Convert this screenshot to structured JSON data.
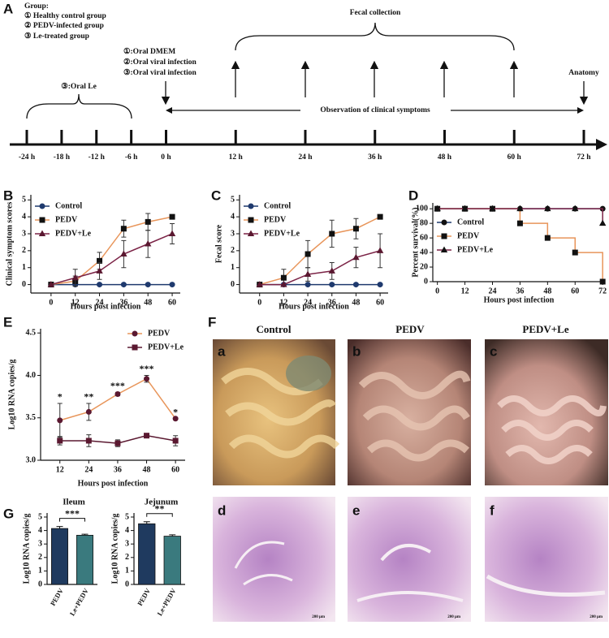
{
  "panel_a": {
    "label": "A",
    "group_title": "Group:",
    "groups": [
      "① Healthy control group",
      "② PEDV-infected group",
      "③ Le-treated group"
    ],
    "pretreatment": "③:Oral Le",
    "infection": [
      "①:Oral DMEM",
      "②:Oral viral infection",
      "③:Oral viral infection"
    ],
    "fecal": "Fecal collection",
    "observation": "Observation of clinical symptoms",
    "anatomy": "Anatomy",
    "timeline": [
      {
        "value": -24,
        "label": "-24 h"
      },
      {
        "value": -18,
        "label": "-18 h"
      },
      {
        "value": -12,
        "label": "-12 h"
      },
      {
        "value": -6,
        "label": "-6 h"
      },
      {
        "value": 0,
        "label": "0 h"
      },
      {
        "value": 12,
        "label": "12 h"
      },
      {
        "value": 24,
        "label": "24 h"
      },
      {
        "value": 36,
        "label": "36 h"
      },
      {
        "value": 48,
        "label": "48 h"
      },
      {
        "value": 60,
        "label": "60 h"
      },
      {
        "value": 72,
        "label": "72 h"
      }
    ]
  },
  "chart_data": [
    {
      "panel": "B",
      "type": "line",
      "ylabel": "Clinical symptom scores",
      "xlabel": "Hours post infection",
      "x": [
        0,
        12,
        24,
        36,
        48,
        60
      ],
      "xlim": [
        -10,
        64
      ],
      "xticks": [
        0,
        12,
        24,
        36,
        48,
        60
      ],
      "ylim": [
        -0.5,
        5.3
      ],
      "yticks": [
        0,
        1,
        2,
        3,
        4,
        5
      ],
      "legend": "upper left",
      "series": [
        {
          "name": "Control",
          "color": "#1f3a6e",
          "marker_color": "#1f3a6e",
          "marker": "circle",
          "values": [
            0,
            0,
            0,
            0,
            0,
            0
          ]
        },
        {
          "name": "PEDV",
          "color": "#e8955a",
          "marker_color": "#111111",
          "marker": "square",
          "values": [
            0,
            0.2,
            1.4,
            3.3,
            3.7,
            4.0
          ],
          "errors": [
            0,
            0.3,
            0.5,
            0.5,
            0.5,
            0
          ]
        },
        {
          "name": "PEDV+Le",
          "color": "#7b2346",
          "marker_color": "#5a1830",
          "marker": "triangle",
          "values": [
            0,
            0.4,
            0.8,
            1.8,
            2.4,
            3.0
          ],
          "errors": [
            0,
            0.5,
            0.5,
            0.8,
            0.8,
            0.6
          ]
        }
      ]
    },
    {
      "panel": "C",
      "type": "line",
      "ylabel": "Fecal score",
      "xlabel": "Hours post infection",
      "x": [
        0,
        12,
        24,
        36,
        48,
        60
      ],
      "xlim": [
        -10,
        64
      ],
      "xticks": [
        0,
        12,
        24,
        36,
        48,
        60
      ],
      "ylim": [
        -0.5,
        5.3
      ],
      "yticks": [
        0,
        1,
        2,
        3,
        4,
        5
      ],
      "legend": "upper left",
      "series": [
        {
          "name": "Control",
          "color": "#1f3a6e",
          "marker_color": "#1f3a6e",
          "marker": "circle",
          "values": [
            0,
            0,
            0,
            0,
            0,
            0
          ]
        },
        {
          "name": "PEDV",
          "color": "#e8955a",
          "marker_color": "#111111",
          "marker": "square",
          "values": [
            0,
            0.4,
            1.8,
            3.0,
            3.3,
            4.0
          ],
          "errors": [
            0,
            0.5,
            0.8,
            0.8,
            0.6,
            0
          ]
        },
        {
          "name": "PEDV+Le",
          "color": "#7b2346",
          "marker_color": "#5a1830",
          "marker": "triangle",
          "values": [
            0,
            0,
            0.6,
            0.8,
            1.6,
            2.0
          ],
          "errors": [
            0,
            0,
            0.4,
            0.5,
            0.6,
            1.0
          ]
        }
      ]
    },
    {
      "panel": "D",
      "type": "step",
      "ylabel": "Percent survival(%)",
      "xlabel": "Hours post infection",
      "x": [
        0,
        12,
        24,
        36,
        48,
        60,
        72
      ],
      "xlim": [
        -2,
        73
      ],
      "xticks": [
        0,
        12,
        24,
        36,
        48,
        60,
        72
      ],
      "ylim": [
        0,
        108
      ],
      "yticks": [
        0,
        20,
        40,
        60,
        80,
        100
      ],
      "legend": "upper left",
      "series": [
        {
          "name": "Control",
          "color": "#1f3a6e",
          "marker_color": "#111111",
          "marker": "circle",
          "values": [
            100,
            100,
            100,
            100,
            100,
            100,
            100
          ]
        },
        {
          "name": "PEDV",
          "color": "#e8955a",
          "marker_color": "#111111",
          "marker": "square",
          "values": [
            100,
            100,
            100,
            80,
            60,
            40,
            0
          ]
        },
        {
          "name": "PEDV+Le",
          "color": "#7b2346",
          "marker_color": "#111111",
          "marker": "triangle",
          "values": [
            100,
            100,
            100,
            100,
            100,
            100,
            80
          ]
        }
      ]
    },
    {
      "panel": "E",
      "type": "line",
      "ylabel": "Log10 RNA copies/g",
      "xlabel": "Hours post infection",
      "x": [
        12,
        24,
        36,
        48,
        60
      ],
      "xlim": [
        4,
        64
      ],
      "xticks": [
        12,
        24,
        36,
        48,
        60
      ],
      "ylim": [
        3.0,
        4.55
      ],
      "yticks": [
        {
          "value": 3.0,
          "label": "3.0"
        },
        {
          "value": 3.5,
          "label": "3.5"
        },
        {
          "value": 4.0,
          "label": "4.0"
        },
        {
          "value": 4.5,
          "label": "4.5"
        }
      ],
      "legend": "upper right",
      "annotations": [
        "*",
        "**",
        "***",
        "***",
        "*"
      ],
      "series": [
        {
          "name": "PEDV",
          "color": "#e8955a",
          "marker_color": "#5a1830",
          "marker": "circle",
          "values": [
            3.47,
            3.57,
            3.78,
            3.96,
            3.49
          ],
          "errors": [
            0.2,
            0.1,
            0.02,
            0.04,
            0
          ]
        },
        {
          "name": "PEDV+Le",
          "color": "#5a1830",
          "marker_color": "#5a1830",
          "marker": "square",
          "values": [
            3.23,
            3.23,
            3.2,
            3.29,
            3.23
          ],
          "errors": [
            0.05,
            0.07,
            0.04,
            0,
            0.06
          ]
        }
      ]
    },
    {
      "panel": "G",
      "type": "bar",
      "title": "Ileum",
      "ylabel": "Log10 RNA copies/g",
      "categories": [
        "PEDV",
        "Le+PEDV"
      ],
      "values": [
        4.15,
        3.65
      ],
      "errors": [
        0.15,
        0.08
      ],
      "colors": [
        "#1f3a5f",
        "#3a7a7e"
      ],
      "ylim": [
        0,
        5.3
      ],
      "yticks": [
        0,
        1,
        2,
        3,
        4,
        5
      ],
      "significance": "***"
    },
    {
      "type": "bar",
      "title": "Jejunum",
      "ylabel": "Log10 RNA copies/g",
      "categories": [
        "PEDV",
        "Le+PEDV"
      ],
      "values": [
        4.5,
        3.58
      ],
      "errors": [
        0.15,
        0.1
      ],
      "colors": [
        "#1f3a5f",
        "#3a7a7e"
      ],
      "ylim": [
        0,
        5.3
      ],
      "yticks": [
        0,
        1,
        2,
        3,
        4,
        5
      ],
      "significance": "**"
    }
  ],
  "panel_f": {
    "label": "F",
    "columns": [
      "Control",
      "PEDV",
      "PEDV+Le"
    ],
    "panels": [
      "a",
      "b",
      "c",
      "d",
      "e",
      "f"
    ],
    "scale_bar": "200 μm"
  }
}
